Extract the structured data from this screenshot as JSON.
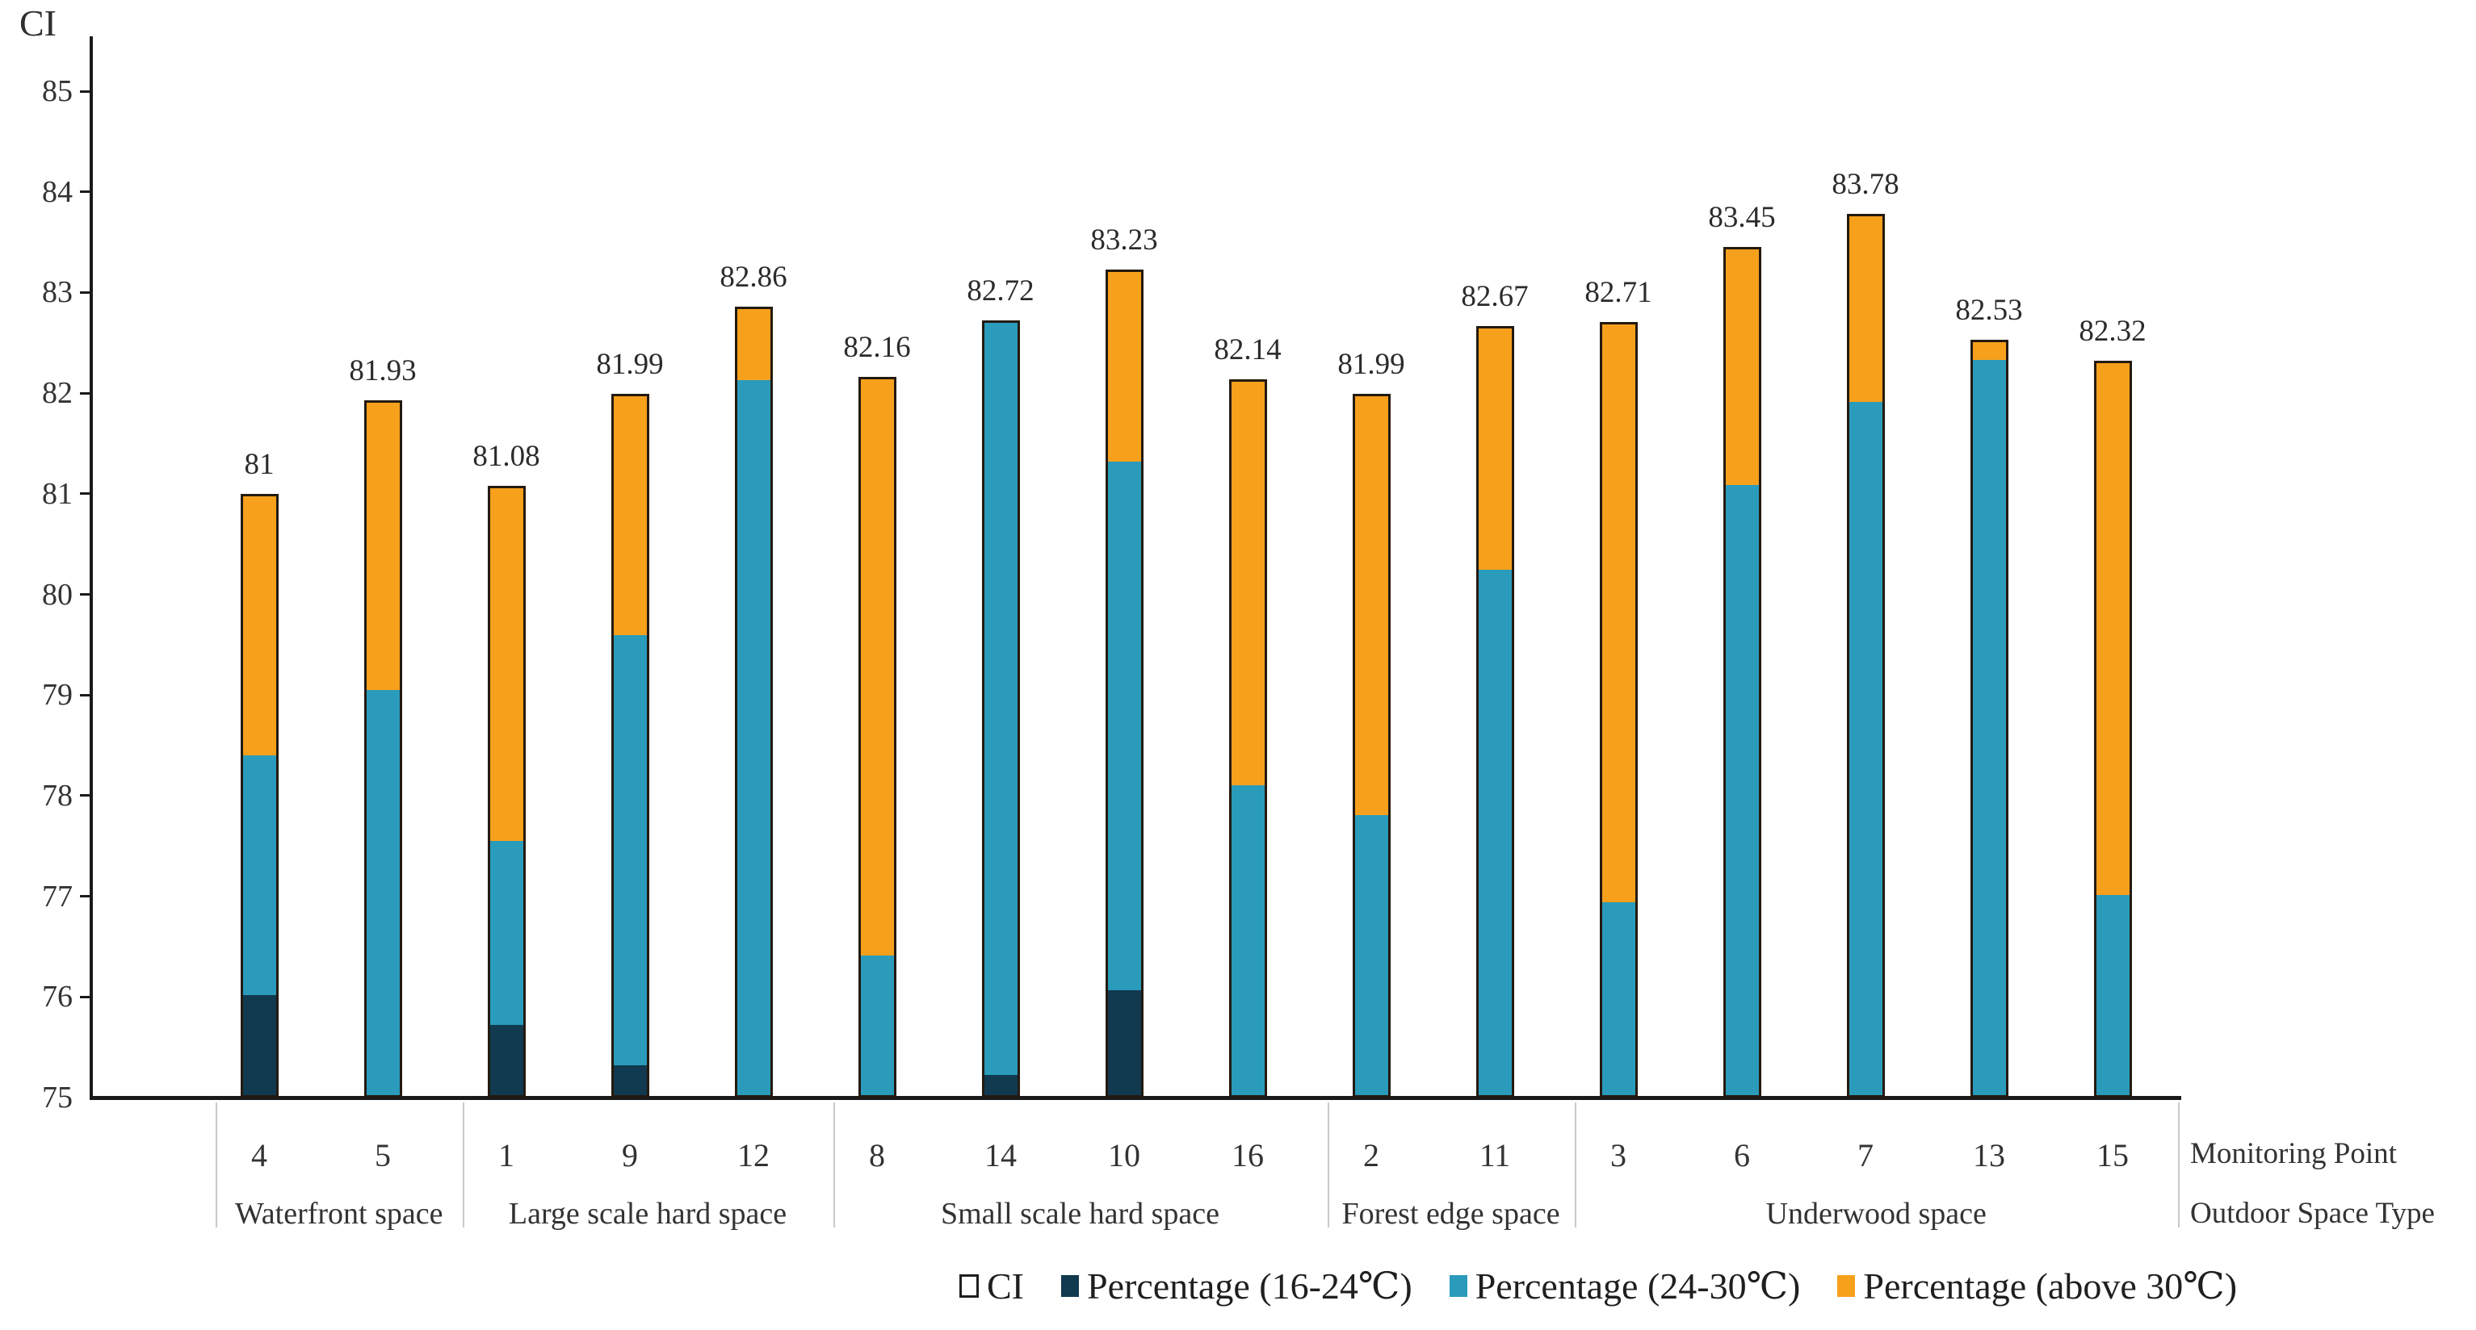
{
  "page": {
    "background": "#ffffff"
  },
  "chart_data": {
    "type": "bar",
    "stacked": true,
    "y_axis_title": "CI",
    "ylim": [
      75,
      85
    ],
    "y_ticks": [
      85,
      84,
      83,
      82,
      81,
      80,
      79,
      78,
      77,
      76,
      75
    ],
    "grid": "off",
    "legend_position": "bottom",
    "x_axis_rows": {
      "row1": "Monitoring Point",
      "row2": "Outdoor Space Type"
    },
    "legend": [
      {
        "label": "CI",
        "color": "#ffffff",
        "outlined": true
      },
      {
        "label": "Percentage (16-24℃)",
        "color": "#11394f",
        "outlined": false
      },
      {
        "label": "Percentage (24-30℃)",
        "color": "#2a9bbb",
        "outlined": false
      },
      {
        "label": "Percentage (above 30℃)",
        "color": "#f7a01c",
        "outlined": false
      }
    ],
    "groups": [
      {
        "label": "Waterfront space",
        "count": 2
      },
      {
        "label": "Large scale hard space",
        "count": 3
      },
      {
        "label": "Small scale hard space",
        "count": 4
      },
      {
        "label": "Forest edge space",
        "count": 2
      },
      {
        "label": "Underwood space",
        "count": 5
      }
    ],
    "points": [
      {
        "monitoring_point": "4",
        "total": 81.0,
        "total_label": "81",
        "pct_16_24_to": 76.0,
        "pct_24_30_to": 78.4
      },
      {
        "monitoring_point": "5",
        "total": 81.93,
        "total_label": "81.93",
        "pct_16_24_to": 75.0,
        "pct_24_30_to": 79.05
      },
      {
        "monitoring_point": "1",
        "total": 81.08,
        "total_label": "81.08",
        "pct_16_24_to": 75.7,
        "pct_24_30_to": 77.55
      },
      {
        "monitoring_point": "9",
        "total": 81.99,
        "total_label": "81.99",
        "pct_16_24_to": 75.3,
        "pct_24_30_to": 79.6
      },
      {
        "monitoring_point": "12",
        "total": 82.86,
        "total_label": "82.86",
        "pct_16_24_to": 75.0,
        "pct_24_30_to": 82.15
      },
      {
        "monitoring_point": "8",
        "total": 82.16,
        "total_label": "82.16",
        "pct_16_24_to": 75.0,
        "pct_24_30_to": 76.4
      },
      {
        "monitoring_point": "14",
        "total": 82.72,
        "total_label": "82.72",
        "pct_16_24_to": 75.2,
        "pct_24_30_to": 82.72
      },
      {
        "monitoring_point": "10",
        "total": 83.23,
        "total_label": "83.23",
        "pct_16_24_to": 76.05,
        "pct_24_30_to": 81.33
      },
      {
        "monitoring_point": "16",
        "total": 82.14,
        "total_label": "82.14",
        "pct_16_24_to": 75.0,
        "pct_24_30_to": 78.1
      },
      {
        "monitoring_point": "2",
        "total": 81.99,
        "total_label": "81.99",
        "pct_16_24_to": 75.0,
        "pct_24_30_to": 77.8
      },
      {
        "monitoring_point": "11",
        "total": 82.67,
        "total_label": "82.67",
        "pct_16_24_to": 75.0,
        "pct_24_30_to": 80.25
      },
      {
        "monitoring_point": "3",
        "total": 82.71,
        "total_label": "82.71",
        "pct_16_24_to": 75.0,
        "pct_24_30_to": 76.93
      },
      {
        "monitoring_point": "6",
        "total": 83.45,
        "total_label": "83.45",
        "pct_16_24_to": 75.0,
        "pct_24_30_to": 81.1
      },
      {
        "monitoring_point": "7",
        "total": 83.78,
        "total_label": "83.78",
        "pct_16_24_to": 75.0,
        "pct_24_30_to": 81.93
      },
      {
        "monitoring_point": "13",
        "total": 82.53,
        "total_label": "82.53",
        "pct_16_24_to": 75.0,
        "pct_24_30_to": 82.35
      },
      {
        "monitoring_point": "15",
        "total": 82.32,
        "total_label": "82.32",
        "pct_16_24_to": 75.0,
        "pct_24_30_to": 77.0
      }
    ],
    "colors": {
      "pct_16_24": "#11394f",
      "pct_24_30": "#2a9bbb",
      "above_30": "#f7a01c",
      "bar_border": "#241a10",
      "axis": "#1a1a1a",
      "divider": "#c9c9c9",
      "text": "#333333"
    }
  }
}
